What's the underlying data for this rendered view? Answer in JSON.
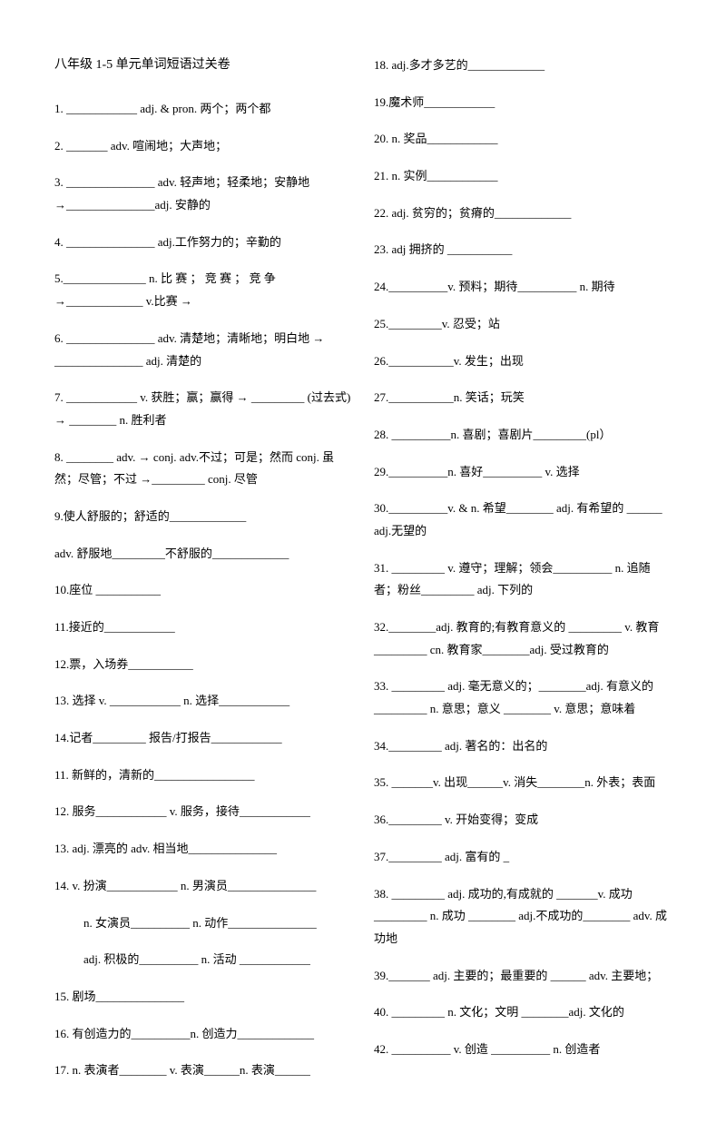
{
  "title": "八年级 1-5 单元单词短语过关卷",
  "left": [
    "1. ____________ adj. & pron. 两个；两个都",
    "2. _______ adv. 喧闹地；大声地；",
    "3. _______________ adv. 轻声地；轻柔地；安静地 →_______________adj. 安静的",
    "4. _______________ adj.工作努力的；辛勤的",
    "5.______________ n. 比 赛 ； 竞 赛 ； 竞 争 →_____________ v.比赛 →",
    "6. _______________ adv. 清楚地；清晰地；明白地 → _______________ adj. 清楚的",
    "7. ____________ v. 获胜；赢；赢得 → _________ (过去式) → ________ n. 胜利者",
    "8. ________ adv. → conj. adv.不过；可是；然而 conj. 虽 然；尽管；不过 →_________ conj. 尽管",
    "9.使人舒服的；舒适的_____________",
    "adv. 舒服地_________不舒服的_____________",
    "10.座位 ___________",
    "11.接近的____________",
    "12.票，入场券___________",
    "13. 选择 v. ____________ n. 选择____________",
    "14.记者_________ 报告/打报告____________",
    "11. 新鲜的，清新的_________________",
    "12. 服务____________ v. 服务，接待____________",
    "13. adj. 漂亮的 adv. 相当地_______________",
    "14. v. 扮演____________ n. 男演员_______________",
    "|sub|n. 女演员__________ n. 动作_______________",
    "|sub|adj. 积极的__________ n. 活动 ____________",
    "15. 剧场_______________",
    "16. 有创造力的__________n. 创造力_____________",
    "17. n. 表演者________ v. 表演______n. 表演______"
  ],
  "right": [
    "18. adj.多才多艺的_____________",
    "19.魔术师____________",
    "20. n. 奖品____________",
    "21. n. 实例____________",
    "22. adj. 贫穷的；贫瘠的_____________",
    "23. adj 拥挤的 ___________",
    "24.__________v. 预料；期待__________ n. 期待",
    "25._________v. 忍受；站",
    "26.___________v. 发生；出现",
    "27.___________n. 笑话；玩笑",
    "28. __________n. 喜剧；喜剧片_________(pl）",
    "29.__________n. 喜好__________ v. 选择",
    "30.__________v. & n. 希望________ adj. 有希望的 ______ adj.无望的",
    "31. _________ v. 遵守；理解；领会__________ n. 追随者；粉丝_________ adj. 下列的",
    "32.________adj. 教育的;有教育意义的 _________ v. 教育_________ cn. 教育家________adj. 受过教育的",
    "33. _________ adj. 毫无意义的；________adj. 有意义的 _________ n. 意思；意义 ________ v. 意思；意味着",
    "34._________ adj. 著名的：出名的",
    "35. _______v. 出现______v. 消失________n. 外表；表面",
    "36._________ v. 开始变得；变成",
    "37._________ adj. 富有的 _",
    "38. _________ adj. 成功的,有成就的 _______v. 成功 _________ n. 成功 ________ adj.不成功的________ adv. 成功地",
    "39._______ adj. 主要的；最重要的 ______ adv. 主要地；",
    "40. _________ n. 文化；文明 ________adj. 文化的",
    "42. __________ v. 创造 __________ n. 创造者"
  ]
}
